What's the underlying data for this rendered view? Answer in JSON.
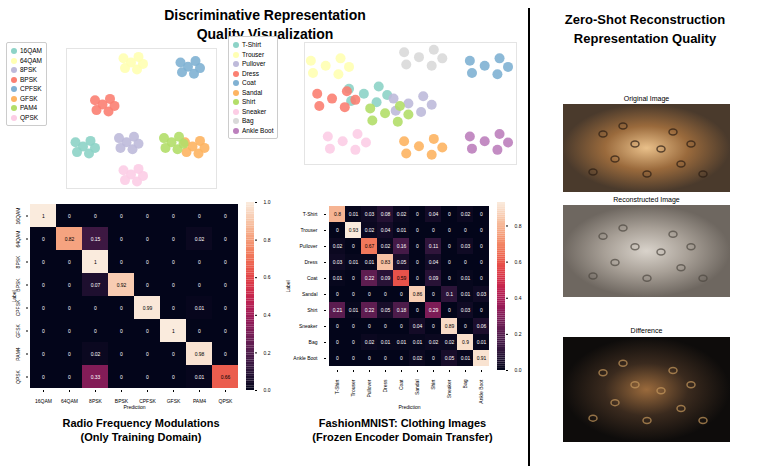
{
  "left_title": "Discriminative Representation Quality Visualization",
  "right_title": "Zero-Shot Reconstruction Representation Quality",
  "chart_data": [
    {
      "type": "scatter",
      "legend": "left",
      "tick_labels": false,
      "xlim": [
        0,
        100
      ],
      "ylim": [
        0,
        100
      ],
      "series": [
        {
          "name": "16QAM",
          "color": "#8dd3c7",
          "x": [
            11,
            16,
            6,
            15,
            7,
            19
          ],
          "y": [
            30,
            34,
            33,
            25,
            26,
            29
          ]
        },
        {
          "name": "64QAM",
          "color": "#ffffb3",
          "x": [
            43,
            48,
            38,
            47,
            39,
            51
          ],
          "y": [
            90,
            94,
            93,
            85,
            86,
            89
          ]
        },
        {
          "name": "8PSK",
          "color": "#bebada",
          "x": [
            40,
            45,
            35,
            44,
            36,
            48
          ],
          "y": [
            33,
            37,
            36,
            28,
            29,
            32
          ]
        },
        {
          "name": "BPSK",
          "color": "#fb8072",
          "x": [
            24,
            29,
            19,
            28,
            20,
            32
          ],
          "y": [
            60,
            64,
            63,
            55,
            56,
            59
          ]
        },
        {
          "name": "CPFSK",
          "color": "#80b1d3",
          "x": [
            81,
            86,
            76,
            85,
            77,
            89
          ],
          "y": [
            87,
            91,
            90,
            82,
            83,
            86
          ]
        },
        {
          "name": "GFSK",
          "color": "#fdb462",
          "x": [
            84,
            89,
            79,
            88,
            80,
            92
          ],
          "y": [
            30,
            34,
            33,
            25,
            26,
            29
          ]
        },
        {
          "name": "PAM4",
          "color": "#b3de69",
          "x": [
            70,
            75,
            65,
            74,
            66,
            78
          ],
          "y": [
            33,
            37,
            36,
            28,
            29,
            32
          ]
        },
        {
          "name": "QPSK",
          "color": "#fccde5",
          "x": [
            43,
            48,
            38,
            47,
            39,
            51
          ],
          "y": [
            10,
            14,
            13,
            5,
            6,
            9
          ]
        }
      ]
    },
    {
      "type": "scatter",
      "legend": "left",
      "tick_labels": false,
      "xlim": [
        0,
        100
      ],
      "ylim": [
        0,
        100
      ],
      "series": [
        {
          "name": "T-Shirt",
          "color": "#8dd3c7",
          "x": [
            28,
            35,
            21,
            34,
            22,
            39
          ],
          "y": [
            58,
            64,
            62,
            51,
            52,
            57
          ]
        },
        {
          "name": "Trouser",
          "color": "#ffffb3",
          "x": [
            10,
            17,
            3,
            16,
            4,
            21
          ],
          "y": [
            81,
            87,
            85,
            74,
            75,
            80
          ]
        },
        {
          "name": "Pullover",
          "color": "#bebada",
          "x": [
            49,
            56,
            42,
            55,
            43,
            60
          ],
          "y": [
            50,
            56,
            54,
            43,
            44,
            49
          ]
        },
        {
          "name": "Dress",
          "color": "#fb8072",
          "x": [
            13,
            20,
            6,
            19,
            7,
            24
          ],
          "y": [
            54,
            60,
            58,
            47,
            48,
            53
          ]
        },
        {
          "name": "Coat",
          "color": "#80b1d3",
          "x": [
            85,
            92,
            78,
            91,
            79,
            96
          ],
          "y": [
            81,
            87,
            85,
            74,
            75,
            80
          ]
        },
        {
          "name": "Sandal",
          "color": "#fdb462",
          "x": [
            54,
            61,
            47,
            60,
            48,
            65
          ],
          "y": [
            15,
            21,
            19,
            8,
            9,
            14
          ]
        },
        {
          "name": "Shirt",
          "color": "#b3de69",
          "x": [
            38,
            45,
            31,
            44,
            32,
            49
          ],
          "y": [
            42,
            48,
            46,
            35,
            36,
            41
          ]
        },
        {
          "name": "Sneaker",
          "color": "#fccde5",
          "x": [
            18,
            25,
            11,
            24,
            12,
            29
          ],
          "y": [
            19,
            25,
            23,
            12,
            13,
            18
          ]
        },
        {
          "name": "Bag",
          "color": "#d9d9d9",
          "x": [
            54,
            61,
            47,
            60,
            48,
            65
          ],
          "y": [
            88,
            94,
            92,
            81,
            82,
            87
          ]
        },
        {
          "name": "Ankle Boot",
          "color": "#bc80bd",
          "x": [
            85,
            92,
            78,
            91,
            79,
            96
          ],
          "y": [
            19,
            25,
            23,
            12,
            13,
            18
          ]
        }
      ]
    },
    {
      "type": "heatmap",
      "title": "Radio Frequency Modulations",
      "subtitle": "(Only Training Domain)",
      "xlabel": "Prediction",
      "ylabel": "Label",
      "data_labels": true,
      "categories": [
        "16QAM",
        "64QAM",
        "8PSK",
        "BPSK",
        "CPFSK",
        "GFSK",
        "PAM4",
        "QPSK"
      ],
      "values": [
        [
          1,
          0,
          0,
          0,
          0,
          0,
          0,
          0
        ],
        [
          0,
          0.82,
          0.15,
          0,
          0,
          0,
          0.02,
          0
        ],
        [
          0,
          0,
          1,
          0,
          0,
          0,
          0,
          0
        ],
        [
          0,
          0,
          0.07,
          0.92,
          0,
          0,
          0,
          0
        ],
        [
          0,
          0,
          0,
          0,
          0.99,
          0,
          0.01,
          0
        ],
        [
          0,
          0,
          0,
          0,
          0,
          1,
          0,
          0
        ],
        [
          0,
          0,
          0.02,
          0,
          0,
          0,
          0.98,
          0
        ],
        [
          0,
          0,
          0.33,
          0,
          0,
          0,
          0.01,
          0.66
        ]
      ],
      "colorbar": {
        "range": [
          0,
          1
        ],
        "ticks": [
          {
            "value": 0,
            "label": "0.0"
          },
          {
            "value": 0.2,
            "label": "0.2"
          },
          {
            "value": 0.4,
            "label": "0.4"
          },
          {
            "value": 0.6,
            "label": "0.6"
          },
          {
            "value": 0.8,
            "label": "0.8"
          },
          {
            "value": 1,
            "label": "1.0"
          }
        ]
      }
    },
    {
      "type": "heatmap",
      "title": "FashionMNIST: Clothing Images",
      "subtitle": "(Frozen Encoder Domain Transfer)",
      "xlabel": "Prediction",
      "ylabel": "Label",
      "data_labels": true,
      "categories": [
        "T-Shirt",
        "Trouser",
        "Pullover",
        "Dress",
        "Coat",
        "Sandal",
        "Shirt",
        "Sneaker",
        "Bag",
        "Ankle Boot"
      ],
      "values": [
        [
          0.8,
          0.01,
          0.03,
          0.08,
          0.02,
          0,
          0.04,
          0,
          0.02,
          0
        ],
        [
          0,
          0.93,
          0.02,
          0.04,
          0.01,
          0,
          0,
          0,
          0,
          0
        ],
        [
          0.02,
          0,
          0.67,
          0.02,
          0.16,
          0,
          0.11,
          0,
          0.03,
          0
        ],
        [
          0.03,
          0.01,
          0.01,
          0.83,
          0.05,
          0,
          0.04,
          0,
          0,
          0
        ],
        [
          0.01,
          0,
          0.22,
          0.09,
          0.59,
          0,
          0.09,
          0,
          0.01,
          0
        ],
        [
          0,
          0,
          0,
          0,
          0,
          0.86,
          0,
          0.1,
          0.01,
          0.03
        ],
        [
          0.21,
          0.01,
          0.22,
          0.05,
          0.18,
          0,
          0.29,
          0,
          0.03,
          0
        ],
        [
          0,
          0,
          0,
          0,
          0,
          0.04,
          0,
          0.89,
          0,
          0.06
        ],
        [
          0,
          0,
          0.02,
          0.01,
          0.01,
          0.01,
          0.02,
          0.02,
          0.9,
          0.01
        ],
        [
          0,
          0,
          0,
          0,
          0,
          0.02,
          0,
          0.05,
          0.01,
          0.91
        ]
      ],
      "colorbar": {
        "range": [
          0,
          0.93
        ],
        "ticks": [
          {
            "value": 0,
            "label": "0.0"
          },
          {
            "value": 0.2,
            "label": "0.2"
          },
          {
            "value": 0.4,
            "label": "0.4"
          },
          {
            "value": 0.6,
            "label": "0.6"
          },
          {
            "value": 0.8,
            "label": "0.8"
          }
        ]
      }
    }
  ],
  "images": [
    {
      "label": "Original Image"
    },
    {
      "label": "Reconstructed Image"
    },
    {
      "label": "Difference"
    }
  ]
}
